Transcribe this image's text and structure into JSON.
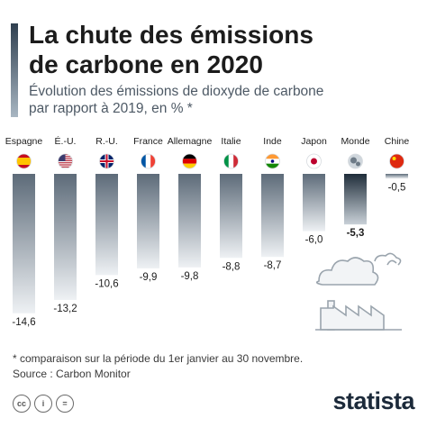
{
  "header": {
    "title_line1": "La chute des émissions",
    "title_line2": "de carbone en 2020",
    "subtitle_line1": "Évolution des émissions de dioxyde de carbone",
    "subtitle_line2": "par rapport à 2019, en % *"
  },
  "footer": {
    "note": "* comparaison sur la période du 1er janvier au 30 novembre.",
    "source": "Source : Carbon Monitor",
    "brand": "statista",
    "license_icons": [
      "cc",
      "i",
      "="
    ]
  },
  "chart_data": {
    "type": "bar",
    "title": "La chute des émissions de carbone en 2020",
    "subtitle": "Évolution des émissions de dioxyde de carbone par rapport à 2019, en % *",
    "categories": [
      "Espagne",
      "É.-U.",
      "R.-U.",
      "France",
      "Allemagne",
      "Italie",
      "Inde",
      "Japon",
      "Monde",
      "Chine"
    ],
    "values": [
      -14.6,
      -13.2,
      -10.6,
      -9.9,
      -9.8,
      -8.8,
      -8.7,
      -6.0,
      -5.3,
      -0.5
    ],
    "value_labels": [
      "-14,6",
      "-13,2",
      "-10,6",
      "-9,9",
      "-9,8",
      "-8,8",
      "-8,7",
      "-6,0",
      "-5,3",
      "-0,5"
    ],
    "flags": [
      "spain-flag-icon",
      "usa-flag-icon",
      "uk-flag-icon",
      "france-flag-icon",
      "germany-flag-icon",
      "italy-flag-icon",
      "india-flag-icon",
      "japan-flag-icon",
      "globe-icon",
      "china-flag-icon"
    ],
    "highlight": "Monde",
    "ylim": [
      -15,
      0
    ],
    "colors": {
      "bar_top": "#5d6b79",
      "bar_bottom": "#eef1f4",
      "highlight_top": "#1f2d3a"
    }
  }
}
